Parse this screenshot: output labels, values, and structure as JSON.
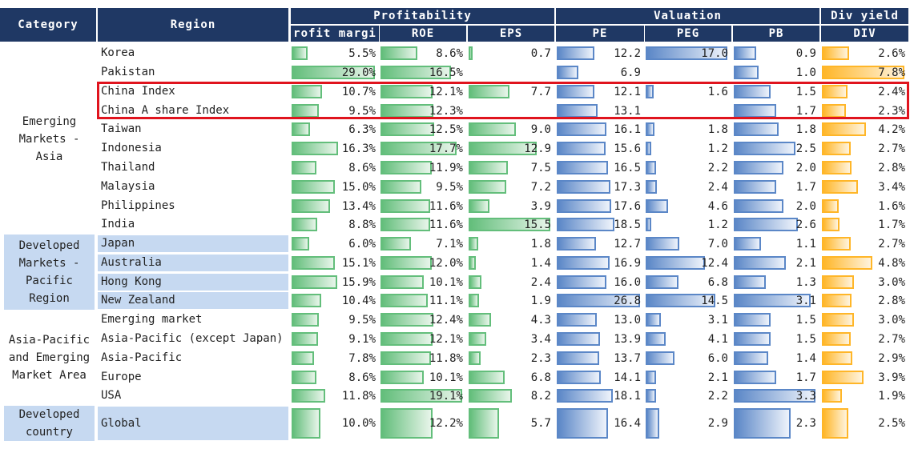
{
  "headers": {
    "category": "Category",
    "region": "Region",
    "groups": [
      "Profitability",
      "Valuation",
      "Div yield"
    ],
    "columns": [
      "rofit margi",
      "ROE",
      "EPS",
      "PE",
      "PEG",
      "PB",
      "DIV"
    ]
  },
  "categories": [
    {
      "label": "Emerging\nMarkets -\nAsia",
      "start": 0,
      "end": 9,
      "shaded": false
    },
    {
      "label": "Developed\nMarkets -\nPacific\nRegion",
      "start": 10,
      "end": 13,
      "shaded": true
    },
    {
      "label": "Asia-Pacific\nand Emerging\nMarket Area",
      "start": 14,
      "end": 18,
      "shaded": false
    },
    {
      "label": "Developed\ncountry",
      "start": 19,
      "end": 19,
      "shaded": true
    }
  ],
  "rows": [
    {
      "region": "Korea",
      "shaded": false
    },
    {
      "region": "Pakistan",
      "shaded": false
    },
    {
      "region": "China Index",
      "shaded": false
    },
    {
      "region": "China A share Index",
      "shaded": false
    },
    {
      "region": "Taiwan",
      "shaded": false
    },
    {
      "region": "Indonesia",
      "shaded": false
    },
    {
      "region": "Thailand",
      "shaded": false
    },
    {
      "region": "Malaysia",
      "shaded": false
    },
    {
      "region": "Philippines",
      "shaded": false
    },
    {
      "region": "India",
      "shaded": false
    },
    {
      "region": "Japan",
      "shaded": true
    },
    {
      "region": "Australia",
      "shaded": true
    },
    {
      "region": "Hong Kong",
      "shaded": true
    },
    {
      "region": "New Zealand",
      "shaded": true
    },
    {
      "region": "Emerging market",
      "shaded": false
    },
    {
      "region": "Asia-Pacific (except Japan)",
      "shaded": false
    },
    {
      "region": "Asia-Pacific",
      "shaded": false
    },
    {
      "region": "Europe",
      "shaded": false
    },
    {
      "region": "USA",
      "shaded": false
    },
    {
      "region": "Global",
      "shaded": true
    }
  ],
  "highlight": {
    "start": 2,
    "end": 3,
    "color": "#e0141e"
  },
  "colors": {
    "header": "#1f3864",
    "shade": "#c6d9f1",
    "green": "#63be7b",
    "blue": "#5b87c7",
    "orange": "#ffb628"
  },
  "chart_data": {
    "type": "table",
    "categories": [
      "Korea",
      "Pakistan",
      "China Index",
      "China A share Index",
      "Taiwan",
      "Indonesia",
      "Thailand",
      "Malaysia",
      "Philippines",
      "India",
      "Japan",
      "Australia",
      "Hong Kong",
      "New Zealand",
      "Emerging market",
      "Asia-Pacific (except Japan)",
      "Asia-Pacific",
      "Europe",
      "USA",
      "Global"
    ],
    "series": [
      {
        "name": "rofit margi",
        "group": "Profitability",
        "color": "green",
        "max": 29.0,
        "suffix": "%",
        "values": [
          5.5,
          29.0,
          10.7,
          9.5,
          6.3,
          16.3,
          8.6,
          15.0,
          13.4,
          8.8,
          6.0,
          15.1,
          15.9,
          10.4,
          9.5,
          9.1,
          7.8,
          8.6,
          11.8,
          10.0
        ],
        "labels": [
          "5.5%",
          "29.0%",
          "10.7%",
          "9.5%",
          "6.3%",
          "16.3%",
          "8.6%",
          "15.0%",
          "13.4%",
          "8.8%",
          "6.0%",
          "15.1%",
          "15.9%",
          "10.4%",
          "9.5%",
          "9.1%",
          "7.8%",
          "8.6%",
          "11.8%",
          "10.0%"
        ]
      },
      {
        "name": "ROE",
        "group": "Profitability",
        "color": "green",
        "max": 19.1,
        "suffix": "%",
        "values": [
          8.6,
          16.5,
          12.1,
          12.3,
          12.5,
          17.7,
          11.9,
          9.5,
          11.6,
          11.6,
          7.1,
          12.0,
          10.1,
          11.1,
          12.4,
          12.1,
          11.8,
          10.1,
          19.1,
          12.2
        ],
        "labels": [
          "8.6%",
          "16.5%",
          "12.1%",
          "12.3%",
          "12.5%",
          "17.7%",
          "11.9%",
          "9.5%",
          "11.6%",
          "11.6%",
          "7.1%",
          "12.0%",
          "10.1%",
          "11.1%",
          "12.4%",
          "12.1%",
          "11.8%",
          "10.1%",
          "19.1%",
          "12.2%"
        ]
      },
      {
        "name": "EPS",
        "group": "Profitability",
        "color": "green",
        "max": 15.5,
        "suffix": "",
        "values": [
          0.7,
          null,
          7.7,
          null,
          9.0,
          12.9,
          7.5,
          7.2,
          3.9,
          15.5,
          1.8,
          1.4,
          2.4,
          1.9,
          4.3,
          3.4,
          2.3,
          6.8,
          8.2,
          5.7
        ],
        "labels": [
          "0.7",
          "",
          "7.7",
          "",
          "9.0",
          "12.9",
          "7.5",
          "7.2",
          "3.9",
          "15.5",
          "1.8",
          "1.4",
          "2.4",
          "1.9",
          "4.3",
          "3.4",
          "2.3",
          "6.8",
          "8.2",
          "5.7"
        ]
      },
      {
        "name": "PE",
        "group": "Valuation",
        "color": "blue",
        "max": 26.8,
        "suffix": "",
        "values": [
          12.2,
          6.9,
          12.1,
          13.1,
          16.1,
          15.6,
          16.5,
          17.3,
          17.6,
          18.5,
          12.7,
          16.9,
          16.0,
          26.8,
          13.0,
          13.9,
          13.7,
          14.1,
          18.1,
          16.4
        ],
        "labels": [
          "12.2",
          "6.9",
          "12.1",
          "13.1",
          "16.1",
          "15.6",
          "16.5",
          "17.3",
          "17.6",
          "18.5",
          "12.7",
          "16.9",
          "16.0",
          "26.8",
          "13.0",
          "13.9",
          "13.7",
          "14.1",
          "18.1",
          "16.4"
        ]
      },
      {
        "name": "PEG",
        "group": "Valuation",
        "color": "blue",
        "max": 17.0,
        "suffix": "",
        "values": [
          17.0,
          null,
          1.6,
          null,
          1.8,
          1.2,
          2.2,
          2.4,
          4.6,
          1.2,
          7.0,
          12.4,
          6.8,
          14.5,
          3.1,
          4.1,
          6.0,
          2.1,
          2.2,
          2.9
        ],
        "labels": [
          "17.0",
          "",
          "1.6",
          "",
          "1.8",
          "1.2",
          "2.2",
          "2.4",
          "4.6",
          "1.2",
          "7.0",
          "12.4",
          "6.8",
          "14.5",
          "3.1",
          "4.1",
          "6.0",
          "2.1",
          "2.2",
          "2.9"
        ]
      },
      {
        "name": "PB",
        "group": "Valuation",
        "color": "blue",
        "max": 3.3,
        "suffix": "",
        "values": [
          0.9,
          1.0,
          1.5,
          1.7,
          1.8,
          2.5,
          2.0,
          1.7,
          2.0,
          2.6,
          1.1,
          2.1,
          1.3,
          3.1,
          1.5,
          1.5,
          1.4,
          1.7,
          3.3,
          2.3
        ],
        "labels": [
          "0.9",
          "1.0",
          "1.5",
          "1.7",
          "1.8",
          "2.5",
          "2.0",
          "1.7",
          "2.0",
          "2.6",
          "1.1",
          "2.1",
          "1.3",
          "3.1",
          "1.5",
          "1.5",
          "1.4",
          "1.7",
          "3.3",
          "2.3"
        ]
      },
      {
        "name": "DIV",
        "group": "Div yield",
        "color": "orange",
        "max": 7.8,
        "suffix": "%",
        "values": [
          2.6,
          7.8,
          2.4,
          2.3,
          4.2,
          2.7,
          2.8,
          3.4,
          1.6,
          1.7,
          2.7,
          4.8,
          3.0,
          2.8,
          3.0,
          2.7,
          2.9,
          3.9,
          1.9,
          2.5
        ],
        "labels": [
          "2.6%",
          "7.8%",
          "2.4%",
          "2.3%",
          "4.2%",
          "2.7%",
          "2.8%",
          "3.4%",
          "1.6%",
          "1.7%",
          "2.7%",
          "4.8%",
          "3.0%",
          "2.8%",
          "3.0%",
          "2.7%",
          "2.9%",
          "3.9%",
          "1.9%",
          "2.5%"
        ]
      }
    ]
  }
}
